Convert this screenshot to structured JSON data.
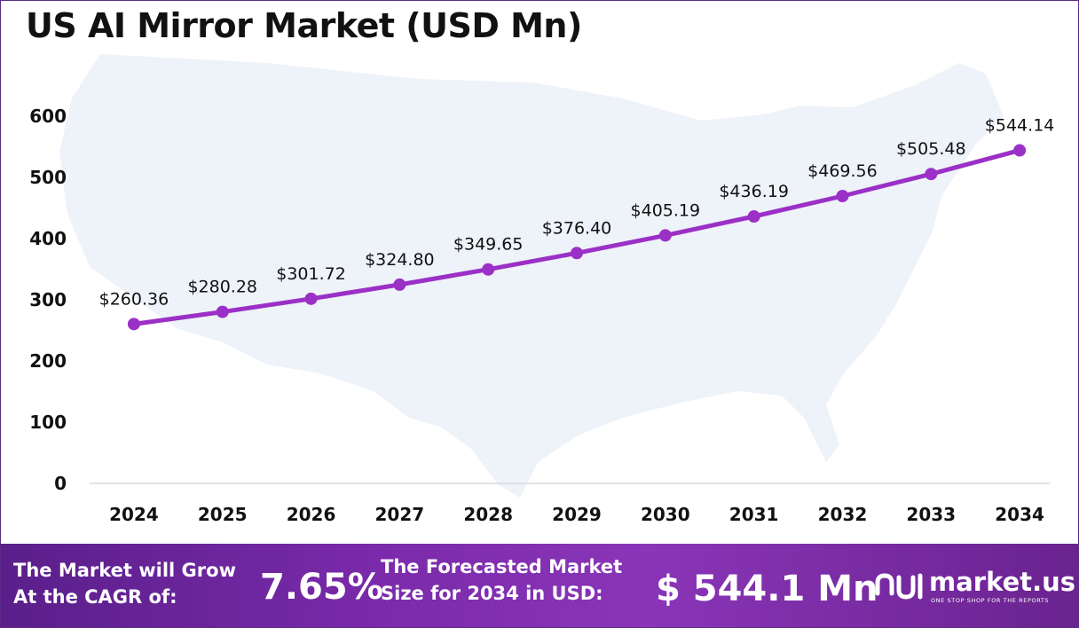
{
  "chart_data": {
    "type": "line",
    "title": "US AI Mirror Market (USD Mn)",
    "categories": [
      "2024",
      "2025",
      "2026",
      "2027",
      "2028",
      "2029",
      "2030",
      "2031",
      "2032",
      "2033",
      "2034"
    ],
    "values": [
      260.36,
      280.28,
      301.72,
      324.8,
      349.65,
      376.4,
      405.19,
      436.19,
      469.56,
      505.48,
      544.14
    ],
    "data_labels": [
      "$260.36",
      "$280.28",
      "$301.72",
      "$324.80",
      "$349.65",
      "$376.40",
      "$405.19",
      "$436.19",
      "$469.56",
      "$505.48",
      "$544.14"
    ],
    "y_ticks": [
      "0",
      "100",
      "200",
      "300",
      "400",
      "500",
      "600"
    ],
    "ylim": [
      0,
      600
    ],
    "xlabel": "",
    "ylabel": "",
    "grid": false,
    "line_color": "#9b30c6",
    "background_map": "United States silhouette"
  },
  "banner": {
    "grow_line1": "The Market will Grow",
    "grow_line2": "At the CAGR of:",
    "cagr_value": "7.65%",
    "forecast_line1": "The Forecasted Market",
    "forecast_line2": "Size for 2034 in USD:",
    "size_value": "$ 544.1 Mn",
    "logo_name": "market.us",
    "logo_tagline": "ONE STOP SHOP FOR THE REPORTS",
    "logo_icon": "market-us-logo-icon",
    "gradient_colors": [
      "#5a1f8a",
      "#8a35b8"
    ]
  }
}
